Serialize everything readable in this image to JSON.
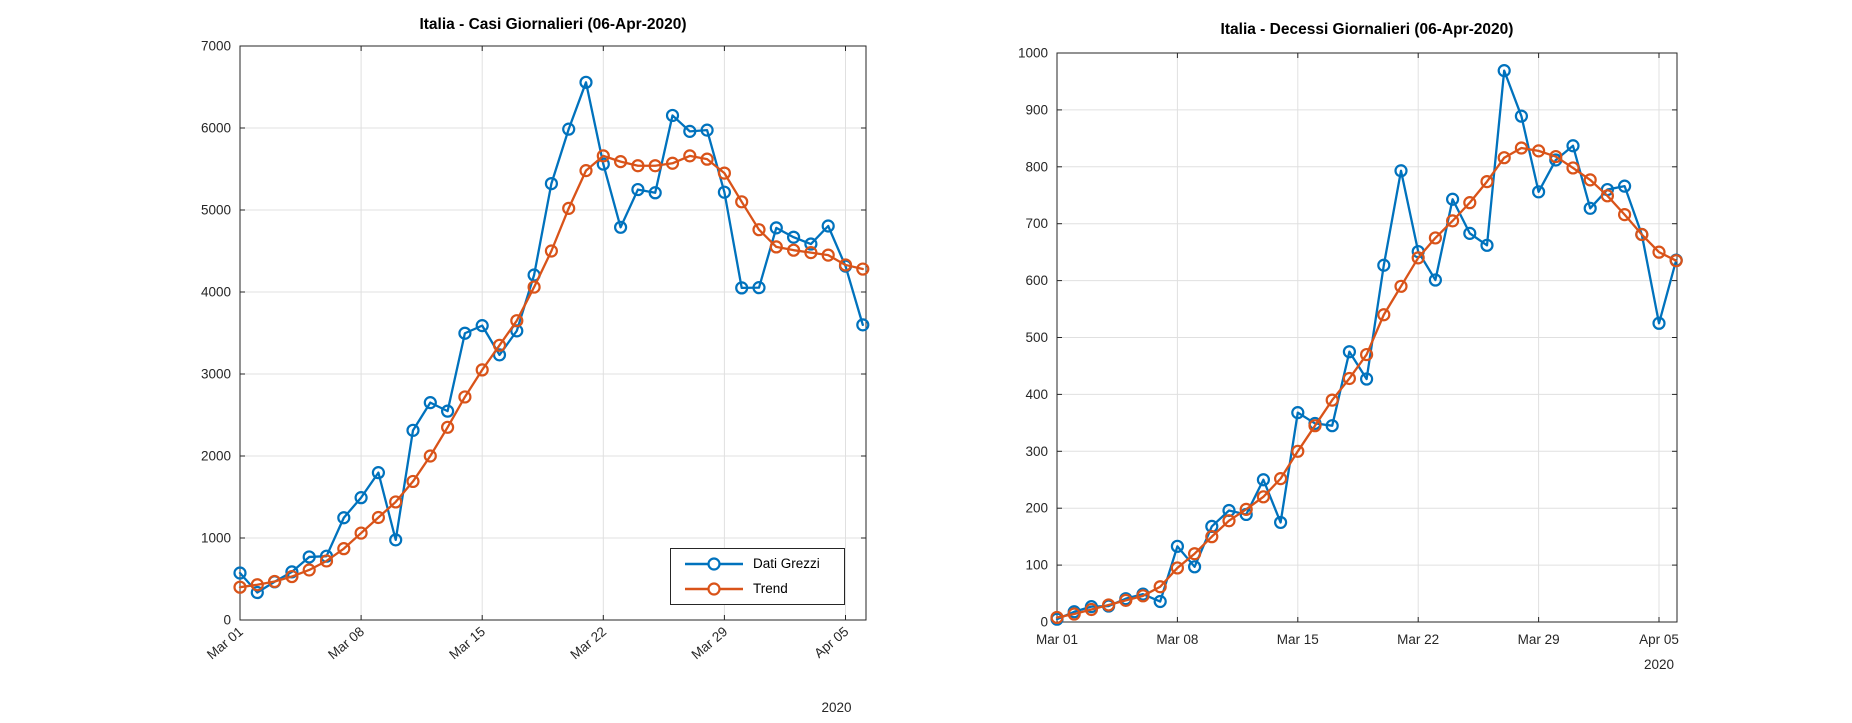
{
  "colors": {
    "raw_series": "#0072BD",
    "trend_series": "#D95319",
    "grid": "#E0E0E0",
    "axis": "#262626",
    "tick_text": "#262626",
    "title_text": "#000000",
    "background": "#FFFFFF"
  },
  "chart_data": [
    {
      "type": "line",
      "title": "Italia - Casi Giornalieri (06-Apr-2020)",
      "xlabel": "",
      "ylabel": "",
      "ylim": [
        0,
        7000
      ],
      "y_tick_step": 1000,
      "y_tick_labels": [
        "0",
        "1000",
        "2000",
        "3000",
        "4000",
        "5000",
        "6000",
        "7000"
      ],
      "x_tick_days": [
        0,
        7,
        14,
        21,
        28,
        35
      ],
      "x_tick_labels": [
        "Mar 01",
        "Mar 08",
        "Mar 15",
        "Mar 22",
        "Mar 29",
        "Apr 05"
      ],
      "x_secondary_label": "2020",
      "grid": true,
      "legend_position": "southeast",
      "dates": [
        "Mar 01",
        "Mar 02",
        "Mar 03",
        "Mar 04",
        "Mar 05",
        "Mar 06",
        "Mar 07",
        "Mar 08",
        "Mar 09",
        "Mar 10",
        "Mar 11",
        "Mar 12",
        "Mar 13",
        "Mar 14",
        "Mar 15",
        "Mar 16",
        "Mar 17",
        "Mar 18",
        "Mar 19",
        "Mar 20",
        "Mar 21",
        "Mar 22",
        "Mar 23",
        "Mar 24",
        "Mar 25",
        "Mar 26",
        "Mar 27",
        "Mar 28",
        "Mar 29",
        "Mar 30",
        "Mar 31",
        "Apr 01",
        "Apr 02",
        "Apr 03",
        "Apr 04",
        "Apr 05",
        "Apr 06"
      ],
      "series": [
        {
          "name": "Dati Grezzi",
          "color": "#0072BD",
          "marker": "circle",
          "values": [
            573,
            335,
            466,
            587,
            769,
            778,
            1247,
            1492,
            1797,
            977,
            2313,
            2651,
            2547,
            3497,
            3590,
            3233,
            3526,
            4207,
            5322,
            5986,
            6557,
            5560,
            4789,
            5249,
            5210,
            6153,
            5959,
            5974,
            5217,
            4050,
            4053,
            4782,
            4668,
            4585,
            4805,
            4316,
            3599
          ]
        },
        {
          "name": "Trend",
          "color": "#D95319",
          "marker": "circle",
          "values": [
            400,
            430,
            470,
            530,
            610,
            720,
            870,
            1060,
            1250,
            1440,
            1690,
            2000,
            2350,
            2720,
            3050,
            3350,
            3650,
            4060,
            4500,
            5020,
            5480,
            5660,
            5590,
            5540,
            5540,
            5570,
            5660,
            5620,
            5450,
            5100,
            4760,
            4550,
            4510,
            4480,
            4450,
            4330,
            4280
          ]
        }
      ]
    },
    {
      "type": "line",
      "title": "Italia - Decessi Giornalieri (06-Apr-2020)",
      "xlabel": "",
      "ylabel": "",
      "ylim": [
        0,
        1000
      ],
      "y_tick_step": 100,
      "y_tick_labels": [
        "0",
        "100",
        "200",
        "300",
        "400",
        "500",
        "600",
        "700",
        "800",
        "900",
        "1000"
      ],
      "x_tick_days": [
        0,
        7,
        14,
        21,
        28,
        35
      ],
      "x_tick_labels": [
        "Mar 01",
        "Mar 08",
        "Mar 15",
        "Mar 22",
        "Mar 29",
        "Apr 05"
      ],
      "x_secondary_label": "2020",
      "grid": true,
      "legend_position": "none",
      "dates": [
        "Mar 01",
        "Mar 02",
        "Mar 03",
        "Mar 04",
        "Mar 05",
        "Mar 06",
        "Mar 07",
        "Mar 08",
        "Mar 09",
        "Mar 10",
        "Mar 11",
        "Mar 12",
        "Mar 13",
        "Mar 14",
        "Mar 15",
        "Mar 16",
        "Mar 17",
        "Mar 18",
        "Mar 19",
        "Mar 20",
        "Mar 21",
        "Mar 22",
        "Mar 23",
        "Mar 24",
        "Mar 25",
        "Mar 26",
        "Mar 27",
        "Mar 28",
        "Mar 29",
        "Mar 30",
        "Mar 31",
        "Apr 01",
        "Apr 02",
        "Apr 03",
        "Apr 04",
        "Apr 05",
        "Apr 06"
      ],
      "series": [
        {
          "name": "Dati Grezzi",
          "color": "#0072BD",
          "marker": "circle",
          "values": [
            5,
            18,
            27,
            28,
            41,
            49,
            36,
            133,
            97,
            168,
            196,
            189,
            250,
            175,
            368,
            349,
            345,
            475,
            427,
            627,
            793,
            651,
            601,
            743,
            683,
            662,
            969,
            889,
            756,
            812,
            837,
            727,
            760,
            766,
            681,
            525,
            636
          ]
        },
        {
          "name": "Trend",
          "color": "#D95319",
          "marker": "circle",
          "values": [
            8,
            14,
            22,
            30,
            38,
            46,
            62,
            95,
            120,
            150,
            178,
            198,
            220,
            252,
            300,
            345,
            390,
            428,
            470,
            540,
            590,
            640,
            675,
            705,
            737,
            774,
            816,
            833,
            828,
            818,
            798,
            777,
            749,
            716,
            681,
            650,
            635
          ]
        }
      ]
    }
  ]
}
